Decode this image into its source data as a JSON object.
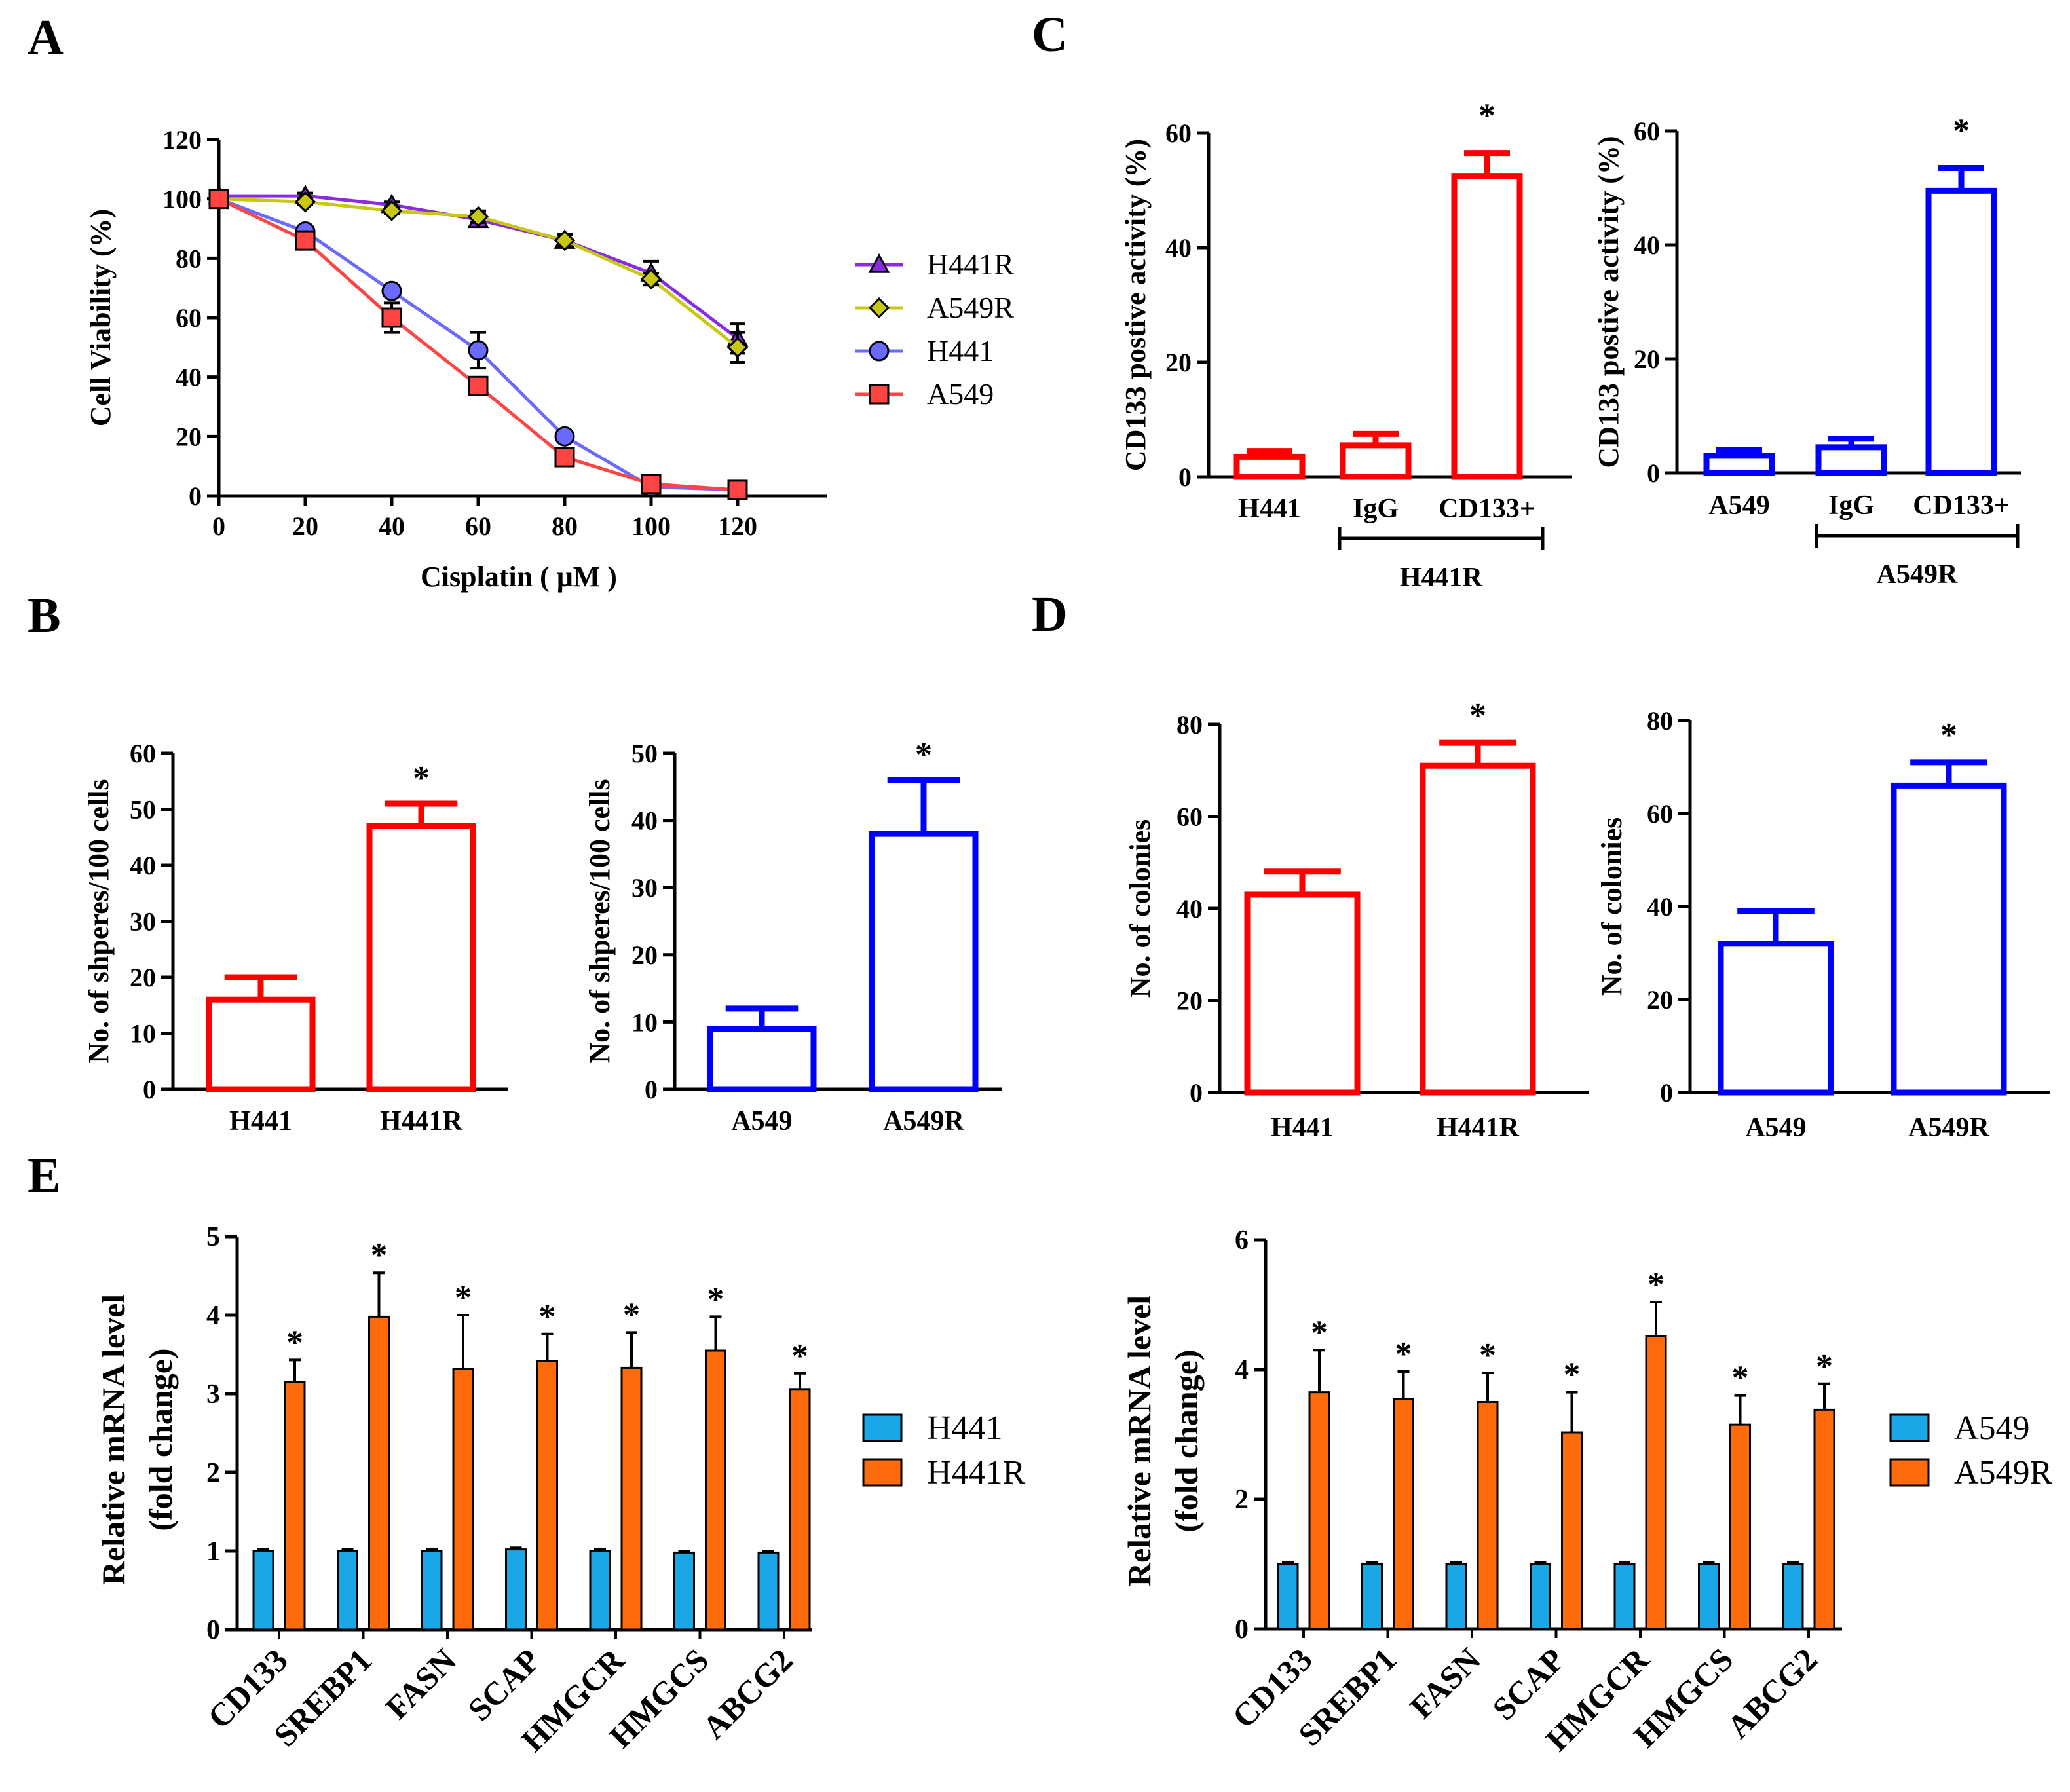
{
  "panel_labels": [
    "A",
    "B",
    "C",
    "D",
    "E"
  ],
  "colors": {
    "red": "#ff0000",
    "blue": "#0000ff",
    "purple": "#8a2be2",
    "olive": "#c8c814",
    "ltblue": "#6a6aff",
    "ltred": "#ff4444",
    "bar_blue": "#1aa7e8",
    "bar_orange": "#ff6a0a"
  },
  "chart_data": [
    {
      "id": "A",
      "type": "line",
      "xlabel": "Cisplatin ( μM )",
      "ylabel": "Cell Viability (%)",
      "x": [
        0,
        20,
        40,
        60,
        80,
        100,
        120
      ],
      "xticks": [
        "0",
        "20",
        "40",
        "60",
        "80",
        "100",
        "120"
      ],
      "yticks": [
        "0",
        "20",
        "40",
        "60",
        "80",
        "100",
        "120"
      ],
      "xlim": [
        0,
        140
      ],
      "ylim": [
        0,
        120
      ],
      "series": [
        {
          "name": "H441R",
          "values": [
            101,
            101,
            98,
            93,
            86,
            75,
            53
          ],
          "errors": [
            1,
            1,
            1,
            2,
            2,
            4,
            5
          ],
          "color": "#8a2be2",
          "marker": "triangle"
        },
        {
          "name": "A549R",
          "values": [
            100,
            99,
            96,
            94,
            86,
            73,
            50
          ],
          "errors": [
            1,
            1,
            1,
            2,
            2,
            2,
            5
          ],
          "color": "#c8c814",
          "marker": "diamond"
        },
        {
          "name": "H441",
          "values": [
            100,
            89,
            69,
            49,
            20,
            3,
            2
          ],
          "errors": [
            1,
            1,
            1,
            6,
            1,
            1,
            1
          ],
          "color": "#6a6aff",
          "marker": "circle"
        },
        {
          "name": "A549",
          "values": [
            100,
            86,
            60,
            37,
            13,
            4,
            2
          ],
          "errors": [
            1,
            2,
            5,
            1,
            1,
            1,
            1
          ],
          "color": "#ff4444",
          "marker": "square"
        }
      ]
    },
    {
      "id": "B-left",
      "type": "bar",
      "ylabel": "No. of shperes/100 cells",
      "categories": [
        "H441",
        "H441R"
      ],
      "values": [
        16,
        47
      ],
      "errors": [
        4,
        4
      ],
      "stars": [
        "",
        "*"
      ],
      "ylim": [
        0,
        60
      ],
      "yticks": [
        "0",
        "10",
        "20",
        "30",
        "40",
        "50",
        "60"
      ],
      "color": "#ff0000"
    },
    {
      "id": "B-right",
      "type": "bar",
      "ylabel": "No. of shperes/100 cells",
      "categories": [
        "A549",
        "A549R"
      ],
      "values": [
        9,
        38
      ],
      "errors": [
        3,
        8
      ],
      "stars": [
        "",
        "*"
      ],
      "ylim": [
        0,
        50
      ],
      "yticks": [
        "0",
        "10",
        "20",
        "30",
        "40",
        "50"
      ],
      "color": "#0000ff"
    },
    {
      "id": "C-left",
      "type": "bar",
      "ylabel": "CD133 postive activity (%)",
      "categories": [
        "H441",
        "IgG",
        "CD133+"
      ],
      "values": [
        3.5,
        5.5,
        52.5
      ],
      "errors": [
        1,
        2,
        4
      ],
      "stars": [
        "",
        "",
        "*"
      ],
      "ylim": [
        0,
        60
      ],
      "yticks": [
        "0",
        "20",
        "40",
        "60"
      ],
      "color": "#ff0000",
      "group_label": "H441R"
    },
    {
      "id": "C-right",
      "type": "bar",
      "ylabel": "CD133 postive activity (%)",
      "categories": [
        "A549",
        "IgG",
        "CD133+"
      ],
      "values": [
        3,
        4.5,
        49.5
      ],
      "errors": [
        1,
        1.5,
        4
      ],
      "stars": [
        "",
        "",
        "*"
      ],
      "ylim": [
        0,
        60
      ],
      "yticks": [
        "0",
        "20",
        "40",
        "60"
      ],
      "color": "#0000ff",
      "group_label": "A549R"
    },
    {
      "id": "D-left",
      "type": "bar",
      "ylabel": "No. of colonies",
      "categories": [
        "H441",
        "H441R"
      ],
      "values": [
        43,
        71
      ],
      "errors": [
        5,
        5
      ],
      "stars": [
        "",
        "*"
      ],
      "ylim": [
        0,
        80
      ],
      "yticks": [
        "0",
        "20",
        "40",
        "60",
        "80"
      ],
      "color": "#ff0000"
    },
    {
      "id": "D-right",
      "type": "bar",
      "ylabel": "No. of colonies",
      "categories": [
        "A549",
        "A549R"
      ],
      "values": [
        32,
        66
      ],
      "errors": [
        7,
        5
      ],
      "stars": [
        "",
        "*"
      ],
      "ylim": [
        0,
        80
      ],
      "yticks": [
        "0",
        "20",
        "40",
        "60",
        "80"
      ],
      "color": "#0000ff"
    },
    {
      "id": "E-left",
      "type": "bar",
      "ylabel": "Relative mRNA level",
      "ylabel2": "(fold change)",
      "categories": [
        "CD133",
        "SREBP1",
        "FASN",
        "SCAP",
        "HMGCR",
        "HMGCS",
        "ABCG2"
      ],
      "ylim": [
        0,
        5
      ],
      "yticks": [
        "0",
        "1",
        "2",
        "3",
        "4",
        "5"
      ],
      "series": [
        {
          "name": "H441",
          "values": [
            1,
            1,
            1,
            1.02,
            1,
            0.98,
            0.98
          ],
          "errors": [
            0.02,
            0.02,
            0.02,
            0.02,
            0.02,
            0.02,
            0.02
          ],
          "color": "#1aa7e8"
        },
        {
          "name": "H441R",
          "values": [
            3.15,
            3.98,
            3.32,
            3.42,
            3.33,
            3.55,
            3.06
          ],
          "errors": [
            0.28,
            0.56,
            0.68,
            0.34,
            0.45,
            0.43,
            0.2
          ],
          "color": "#ff6a0a"
        }
      ],
      "stars": [
        "*",
        "*",
        "*",
        "*",
        "*",
        "*",
        "*"
      ]
    },
    {
      "id": "E-right",
      "type": "bar",
      "ylabel": "Relative mRNA level",
      "ylabel2": "(fold change)",
      "categories": [
        "CD133",
        "SREBP1",
        "FASN",
        "SCAP",
        "HMGCR",
        "HMGCS",
        "ABCG2"
      ],
      "ylim": [
        0,
        6
      ],
      "yticks": [
        "0",
        "2",
        "4",
        "6"
      ],
      "ytick_values": [
        0,
        2,
        4,
        6
      ],
      "series": [
        {
          "name": "A549",
          "values": [
            1,
            1,
            1,
            1,
            1,
            1,
            1
          ],
          "errors": [
            0.02,
            0.02,
            0.02,
            0.02,
            0.02,
            0.02,
            0.02
          ],
          "color": "#1aa7e8"
        },
        {
          "name": "A549R",
          "values": [
            3.65,
            3.55,
            3.5,
            3.03,
            4.52,
            3.15,
            3.38
          ],
          "errors": [
            0.65,
            0.42,
            0.45,
            0.62,
            0.52,
            0.45,
            0.4
          ],
          "color": "#ff6a0a"
        }
      ],
      "stars": [
        "*",
        "*",
        "*",
        "*",
        "*",
        "*",
        "*"
      ]
    }
  ]
}
